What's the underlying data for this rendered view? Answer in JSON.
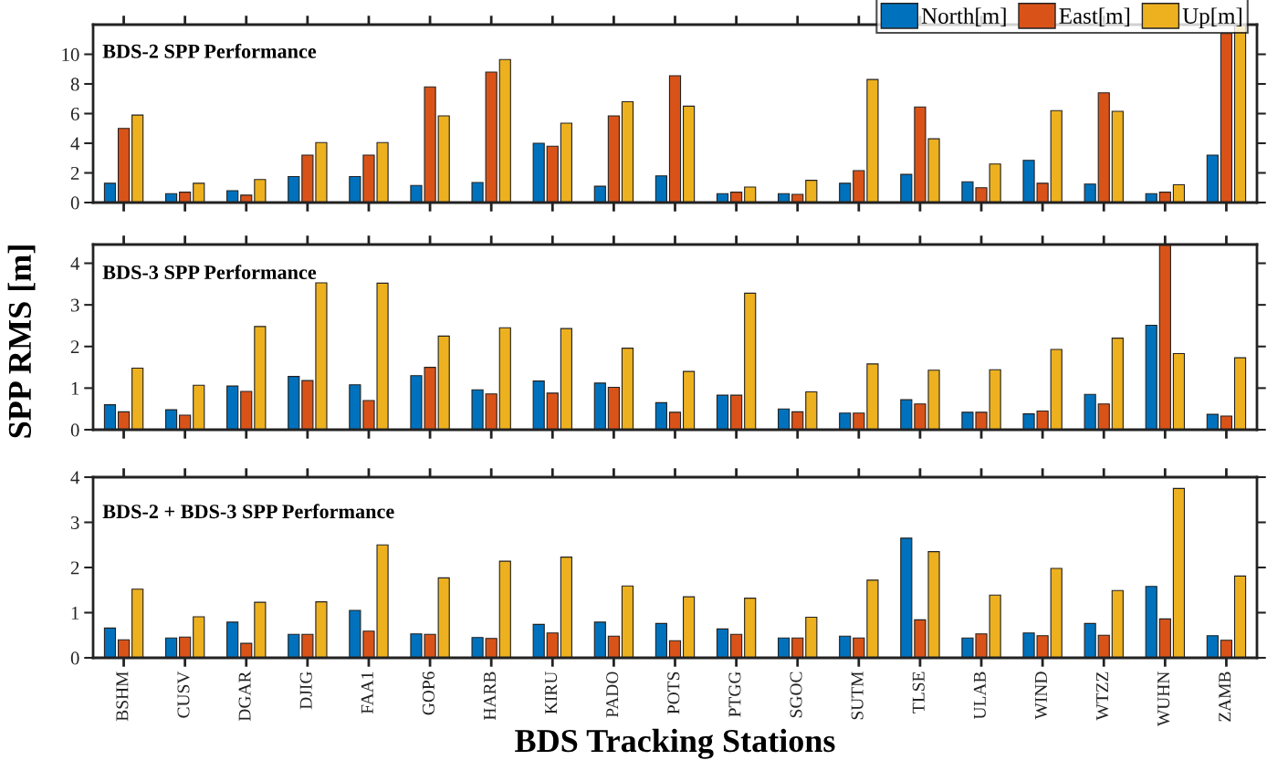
{
  "chart_data": [
    {
      "type": "bar",
      "title": "BDS-2 SPP Performance",
      "ylabel": "SPP RMS [m]",
      "categories": [
        null,
        null,
        null,
        null,
        null,
        null,
        null,
        null,
        null,
        null,
        null,
        null,
        null,
        null,
        null,
        null,
        null,
        null,
        null
      ],
      "series": [
        {
          "name": "North[m]",
          "color": "#0072bd",
          "values": [
            1.3,
            0.6,
            0.8,
            1.75,
            1.75,
            1.15,
            1.35,
            4.0,
            1.1,
            1.8,
            0.6,
            0.6,
            1.3,
            1.9,
            1.4,
            2.85,
            1.25,
            0.6,
            3.2
          ]
        },
        {
          "name": "East[m]",
          "color": "#d95319",
          "values": [
            5.0,
            0.7,
            0.5,
            3.2,
            3.2,
            7.8,
            8.8,
            3.8,
            5.85,
            8.55,
            0.7,
            0.55,
            2.15,
            6.45,
            1.0,
            1.3,
            7.4,
            0.7,
            11.4
          ]
        },
        {
          "name": "Up[m]",
          "color": "#edb120",
          "values": [
            5.9,
            1.3,
            1.55,
            4.05,
            4.05,
            5.85,
            9.65,
            5.35,
            6.8,
            6.5,
            1.05,
            1.5,
            8.3,
            4.3,
            2.6,
            6.2,
            6.15,
            1.2,
            12
          ]
        }
      ],
      "ylim": [
        0,
        12
      ],
      "yticks": [
        0,
        2,
        4,
        6,
        8,
        10
      ],
      "tick_labels": "y",
      "legend": "top right",
      "grid": false
    },
    {
      "type": "bar",
      "title": "BDS-3 SPP Performance",
      "categories": [
        null,
        null,
        null,
        null,
        null,
        null,
        null,
        null,
        null,
        null,
        null,
        null,
        null,
        null,
        null,
        null,
        null,
        null,
        null
      ],
      "series": [
        {
          "color": "#0072bd",
          "values": [
            0.6,
            0.48,
            1.05,
            1.28,
            1.08,
            1.3,
            0.96,
            1.17,
            1.12,
            0.65,
            0.83,
            0.5,
            0.4,
            0.72,
            0.42,
            0.38,
            0.85,
            2.51,
            0.37
          ]
        },
        {
          "color": "#d95319",
          "values": [
            0.43,
            0.35,
            0.92,
            1.18,
            0.7,
            1.5,
            0.86,
            0.88,
            1.02,
            0.42,
            0.83,
            0.43,
            0.4,
            0.62,
            0.42,
            0.45,
            0.62,
            4.45,
            0.33
          ]
        },
        {
          "color": "#edb120",
          "values": [
            1.48,
            1.07,
            2.48,
            3.53,
            3.52,
            2.25,
            2.45,
            2.43,
            1.96,
            1.4,
            3.28,
            0.91,
            1.58,
            1.43,
            1.44,
            1.93,
            2.2,
            1.83,
            1.73
          ]
        }
      ],
      "ylim": [
        0,
        4.45
      ],
      "yticks": [
        0,
        1,
        2,
        3,
        4
      ],
      "tick_labels": "y",
      "grid": false
    },
    {
      "type": "bar",
      "title": "BDS-2 + BDS-3 SPP Performance",
      "xlabel": "BDS Tracking Stations",
      "categories": [
        "BSHM",
        "CUSV",
        "DGAR",
        "DJIG",
        "FAA1",
        "GOP6",
        "HARB",
        "KIRU",
        "PADO",
        "POTS",
        "PTGG",
        "SGOC",
        "SUTM",
        "TLSE",
        "ULAB",
        "WIND",
        "WTZZ",
        "WUHN",
        "ZAMB"
      ],
      "series": [
        {
          "color": "#0072bd",
          "values": [
            0.66,
            0.44,
            0.79,
            0.52,
            1.05,
            0.53,
            0.45,
            0.74,
            0.79,
            0.76,
            0.64,
            0.44,
            0.48,
            2.65,
            0.44,
            0.55,
            0.76,
            1.58,
            0.49
          ]
        },
        {
          "color": "#d95319",
          "values": [
            0.4,
            0.46,
            0.32,
            0.52,
            0.59,
            0.52,
            0.43,
            0.55,
            0.48,
            0.38,
            0.52,
            0.44,
            0.44,
            0.84,
            0.53,
            0.49,
            0.5,
            0.86,
            0.39
          ]
        },
        {
          "color": "#edb120",
          "values": [
            1.52,
            0.91,
            1.23,
            1.24,
            2.5,
            1.77,
            2.14,
            2.23,
            1.59,
            1.35,
            1.32,
            0.9,
            1.72,
            2.35,
            1.39,
            1.98,
            1.49,
            3.75,
            1.81
          ]
        }
      ],
      "ylim": [
        0,
        4
      ],
      "yticks": [
        0,
        1,
        2,
        3,
        4
      ],
      "grid": false
    }
  ]
}
